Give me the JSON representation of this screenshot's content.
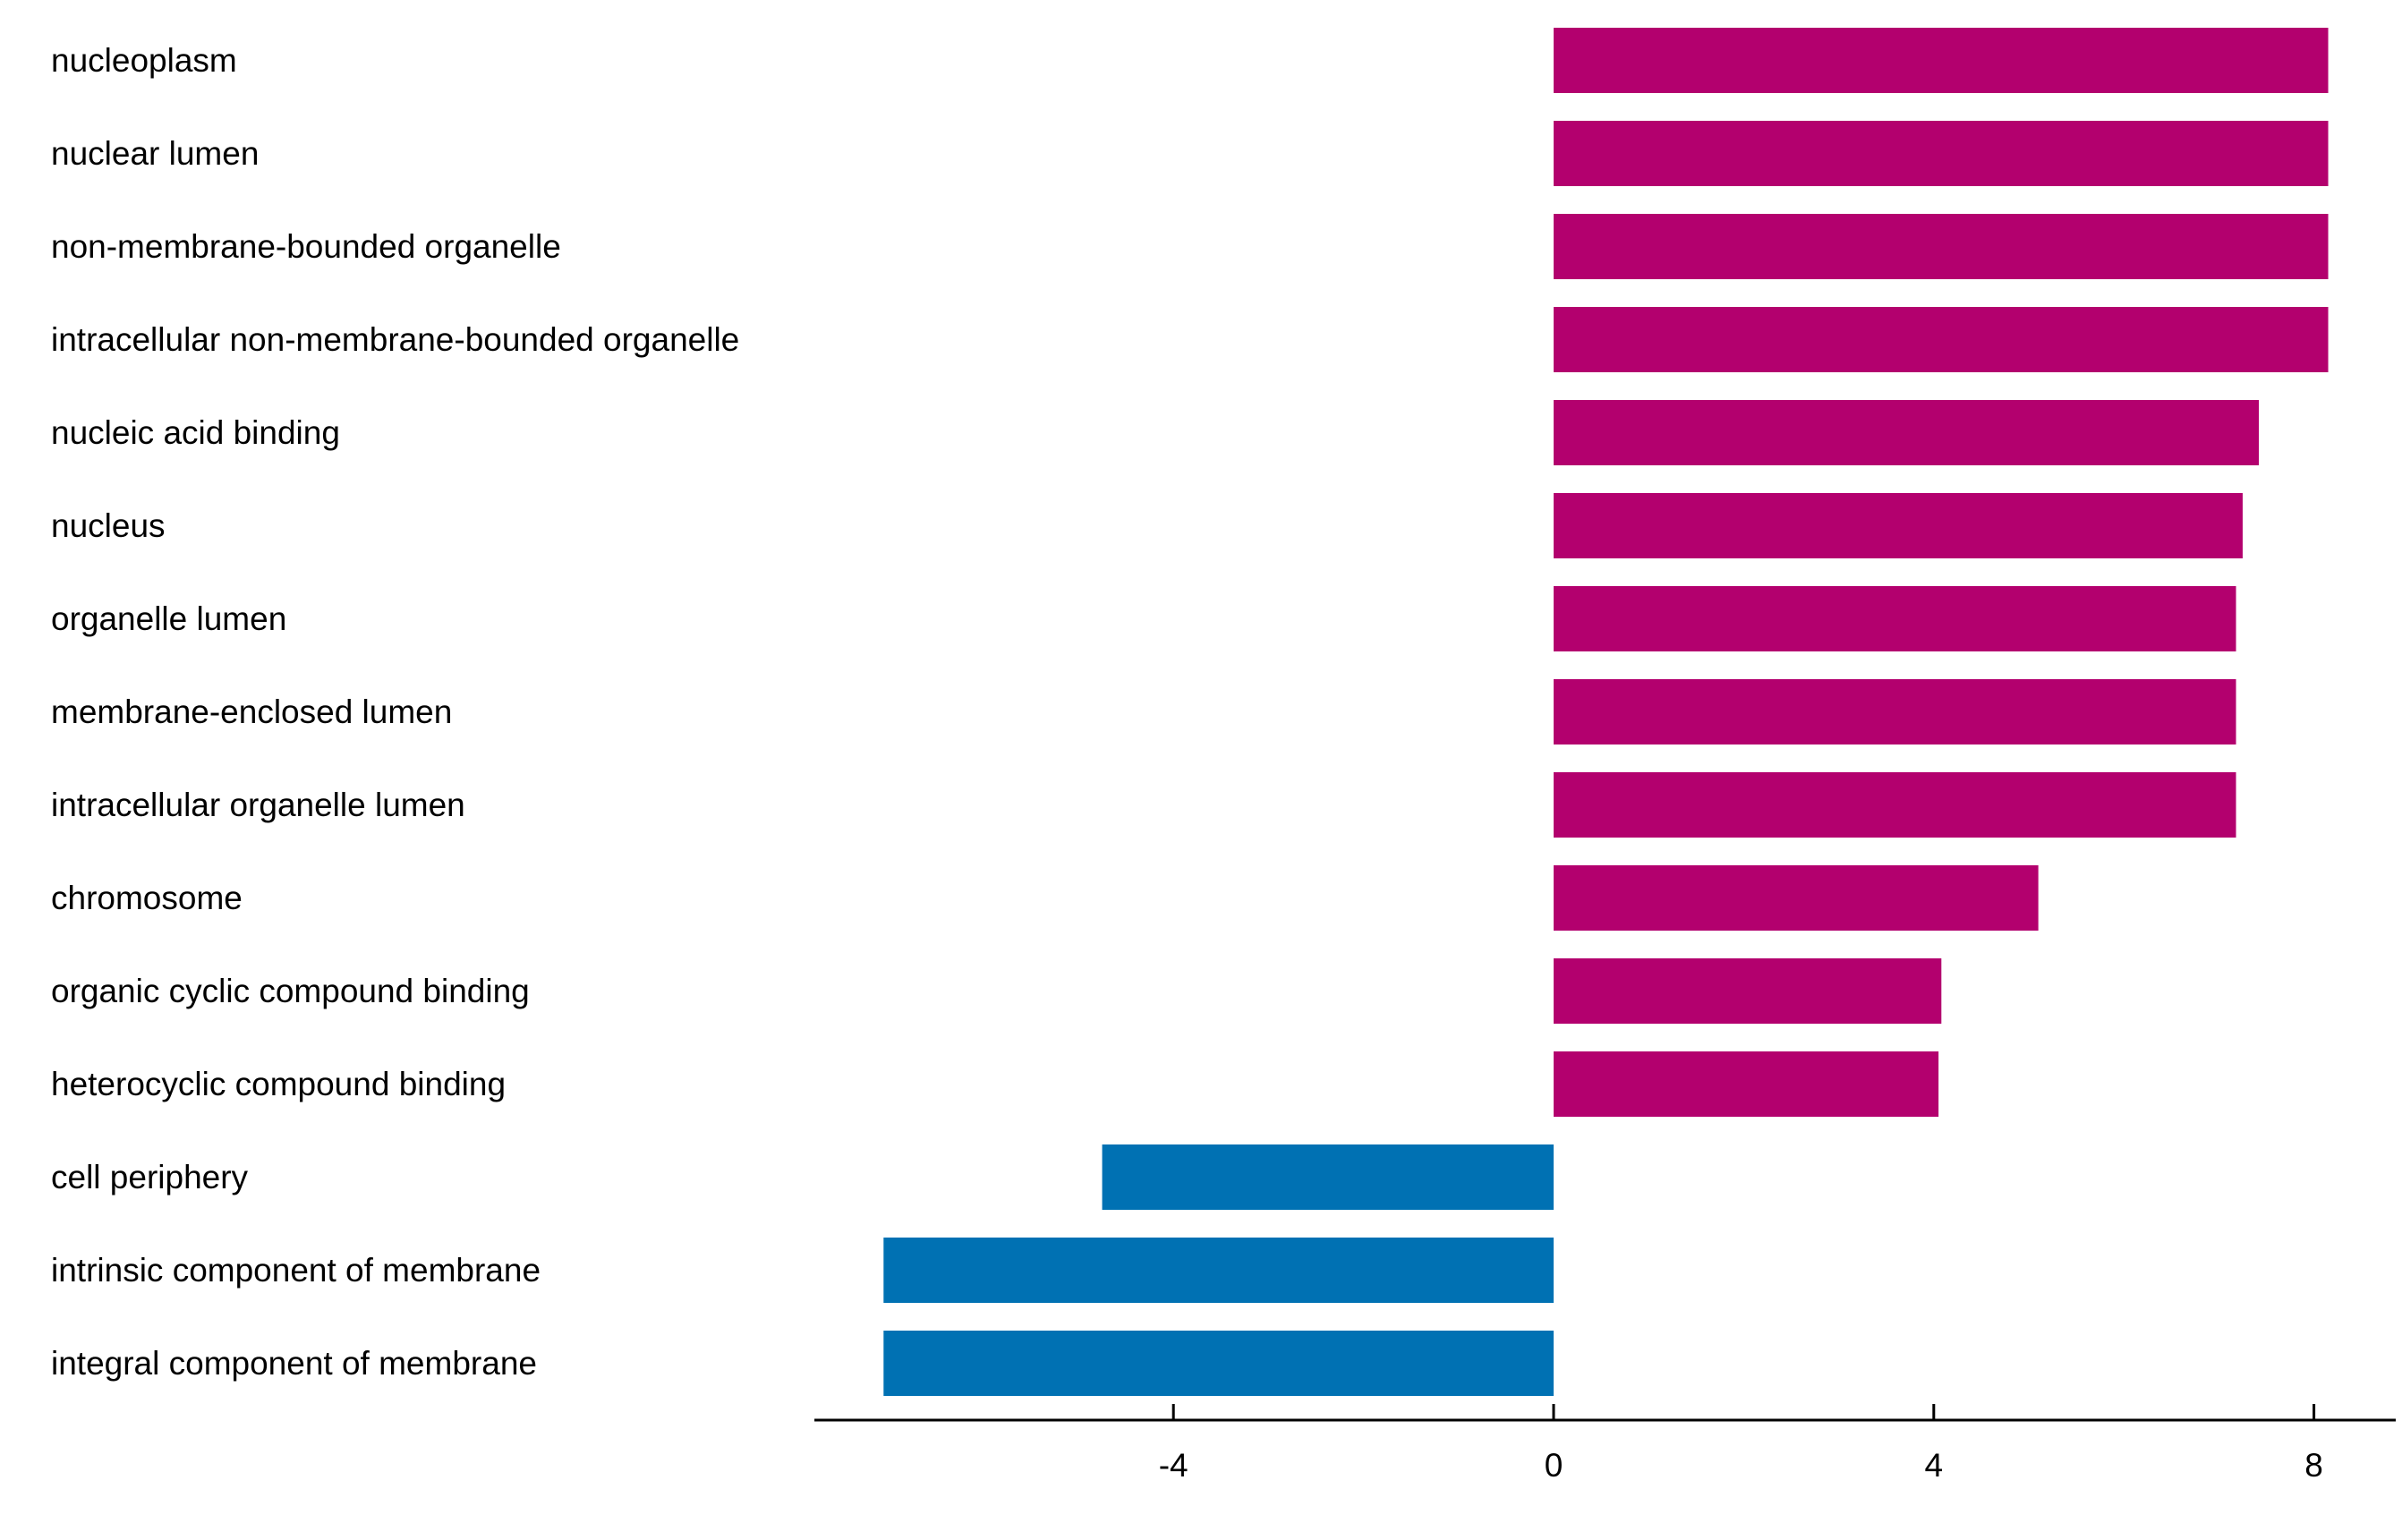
{
  "chart_data": {
    "type": "bar",
    "orientation": "horizontal",
    "title": "",
    "xlabel": "",
    "ylabel": "",
    "xlim": [
      -8.1,
      8.9
    ],
    "xticks": [
      -4,
      0,
      4,
      8
    ],
    "xtick_labels": [
      "-4",
      "0",
      "4",
      "8"
    ],
    "grid": false,
    "legend": "none",
    "colors": {
      "positive": "#b3006e",
      "negative": "#0071b3",
      "axis": "#000000",
      "text": "#000000"
    },
    "categories": [
      "nucleoplasm",
      "nuclear lumen",
      "non-membrane-bounded organelle",
      "intracellular non-membrane-bounded organelle",
      "nucleic acid binding",
      "nucleus",
      "organelle lumen",
      "membrane-enclosed lumen",
      "intracellular organelle lumen",
      "chromosome",
      "organic cyclic compound binding",
      "heterocyclic compound binding",
      "cell periphery",
      "intrinsic component of membrane",
      "integral component of membrane"
    ],
    "values": [
      8.15,
      8.15,
      8.15,
      8.15,
      7.42,
      7.25,
      7.18,
      7.18,
      7.18,
      5.1,
      4.08,
      4.05,
      -4.75,
      -7.05,
      -7.05
    ]
  }
}
